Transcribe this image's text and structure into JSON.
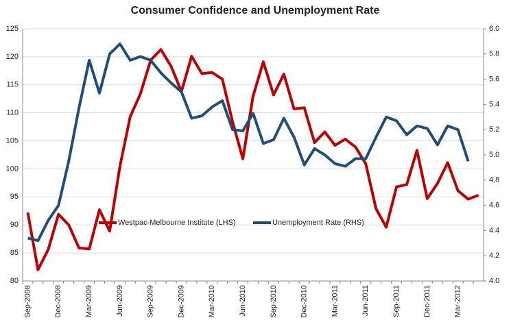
{
  "chart_data": {
    "type": "line",
    "title": "Consumer Confidence and Unemployment Rate",
    "categories": [
      "Sep-2008",
      null,
      null,
      "Dec-2008",
      null,
      null,
      "Mar-2009",
      null,
      null,
      "Jun-2009",
      null,
      null,
      "Sep-2009",
      null,
      null,
      "Dec-2009",
      null,
      null,
      "Mar-2010",
      null,
      null,
      "Jun-2010",
      null,
      null,
      "Sep-2010",
      null,
      null,
      "Dec-2010",
      null,
      null,
      "Mar-2011",
      null,
      null,
      "Jun-2011",
      null,
      null,
      "Sep-2011",
      null,
      null,
      "Dec-2011",
      null,
      null,
      "Mar-2012",
      null,
      null
    ],
    "series": [
      {
        "name": "Westpac-Melbourne Institute (LHS)",
        "color": "#c00000",
        "values": [
          92.2,
          82.0,
          85.6,
          91.9,
          90.0,
          85.9,
          85.7,
          92.7,
          88.9,
          100.5,
          109.3,
          113.4,
          119.4,
          121.3,
          118.3,
          113.8,
          120.1,
          117.0,
          117.2,
          116.0,
          108.4,
          101.8,
          113.0,
          119.1,
          113.2,
          116.9,
          110.7,
          110.9,
          104.7,
          106.6,
          104.2,
          105.3,
          103.9,
          100.9,
          92.9,
          89.6,
          96.8,
          97.2,
          103.3,
          94.7,
          97.4,
          101.1,
          96.1,
          94.6,
          95.3
        ]
      },
      {
        "name": "Unemployment Rate (RHS)",
        "color": "#1f4e79",
        "axis": "y2",
        "values": [
          4.34,
          4.32,
          4.48,
          4.6,
          4.95,
          5.37,
          5.75,
          5.49,
          5.8,
          5.88,
          5.75,
          5.78,
          5.75,
          5.65,
          5.57,
          5.5,
          5.29,
          5.31,
          5.38,
          5.43,
          5.2,
          5.19,
          5.33,
          5.09,
          5.12,
          5.29,
          5.14,
          4.92,
          5.05,
          5.0,
          4.93,
          4.91,
          4.97,
          4.97,
          5.14,
          5.3,
          5.27,
          5.16,
          5.23,
          5.21,
          5.08,
          5.23,
          5.2,
          4.95,
          null
        ]
      }
    ],
    "ylim": [
      80,
      125
    ],
    "yticks": [
      80,
      85,
      90,
      95,
      100,
      105,
      110,
      115,
      120,
      125
    ],
    "y2lim": [
      4,
      6
    ],
    "y2ticks": [
      {
        "value": 4,
        "label": "4.0"
      },
      4.2,
      4.4,
      4.6,
      4.8,
      {
        "value": 5,
        "label": "5.0"
      },
      5.2,
      5.4,
      5.6,
      5.8,
      {
        "value": 6,
        "label": "6.0"
      }
    ],
    "grid": true,
    "legend": "lower center"
  }
}
